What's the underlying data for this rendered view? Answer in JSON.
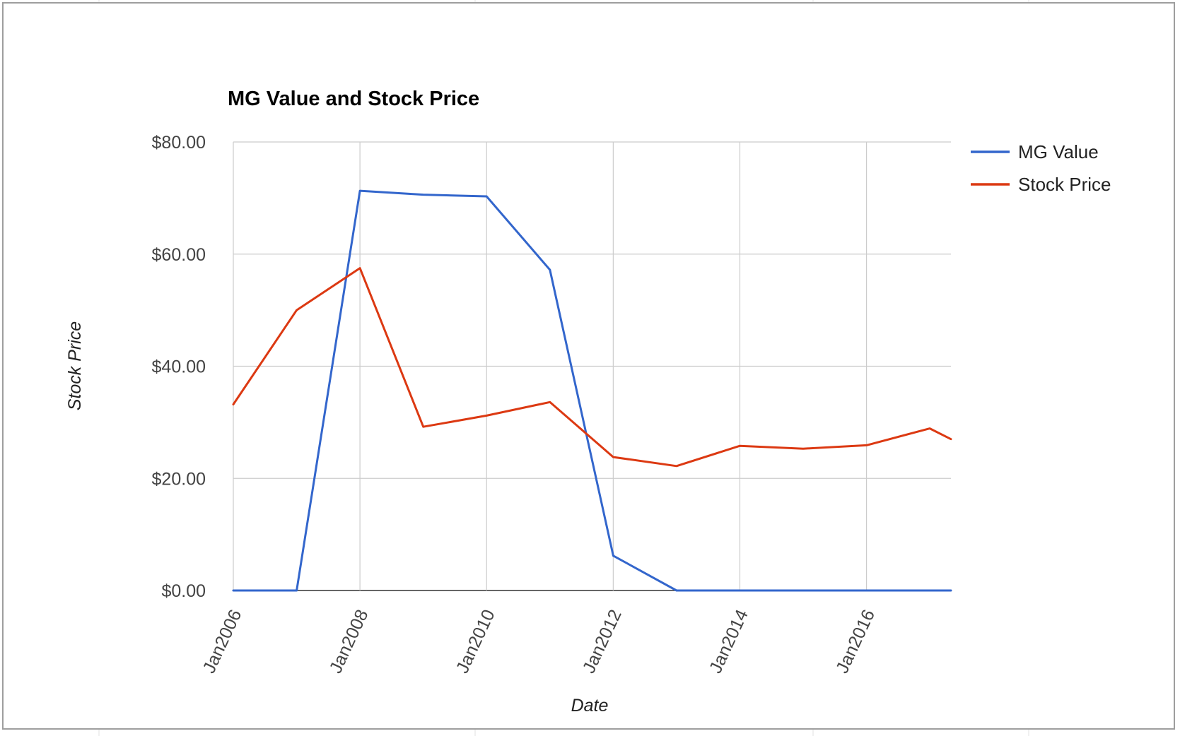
{
  "chart_data": {
    "type": "line",
    "title": "MG Value and Stock Price",
    "xlabel": "Date",
    "ylabel": "Stock Price",
    "x": [
      "2006-01",
      "2007-01",
      "2008-01",
      "2009-01",
      "2010-01",
      "2011-01",
      "2012-01",
      "2013-01",
      "2014-01",
      "2015-01",
      "2016-01",
      "2017-01",
      "2017-05"
    ],
    "x_ticks": [
      "Jan2006",
      "Jan2008",
      "Jan2010",
      "Jan2012",
      "Jan2014",
      "Jan2016"
    ],
    "x_tick_dates": [
      "2006-01",
      "2008-01",
      "2010-01",
      "2012-01",
      "2014-01",
      "2016-01"
    ],
    "xlim": [
      "2006-01",
      "2017-05"
    ],
    "ylim": [
      0,
      80
    ],
    "y_ticks": [
      "$0.00",
      "$20.00",
      "$40.00",
      "$60.00",
      "$80.00"
    ],
    "y_tick_values": [
      0,
      20,
      40,
      60,
      80
    ],
    "grid": true,
    "legend_position": "right",
    "series": [
      {
        "name": "MG Value",
        "color": "#3366cc",
        "values": [
          0,
          0,
          71.3,
          70.6,
          70.3,
          57.2,
          6.2,
          0,
          0,
          0,
          0,
          0,
          0
        ]
      },
      {
        "name": "Stock Price",
        "color": "#dc3912",
        "values": [
          33.2,
          50.0,
          57.5,
          29.2,
          31.2,
          33.6,
          23.8,
          22.2,
          25.8,
          25.3,
          25.9,
          28.9,
          27.0
        ]
      }
    ]
  }
}
